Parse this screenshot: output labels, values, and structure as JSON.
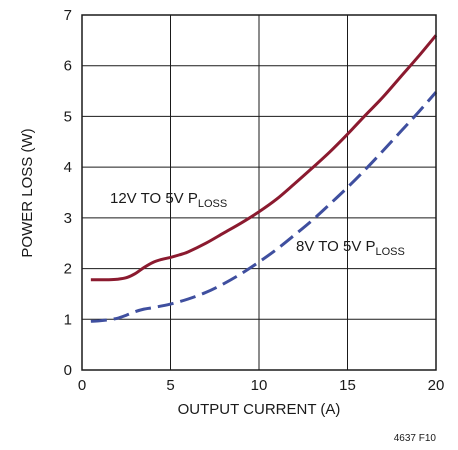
{
  "chart_data": {
    "type": "line",
    "xlabel": "OUTPUT CURRENT (A)",
    "ylabel": "POWER LOSS (W)",
    "xlim": [
      0,
      20
    ],
    "ylim": [
      0,
      7
    ],
    "x_ticks": [
      "0",
      "5",
      "10",
      "15",
      "20"
    ],
    "y_ticks": [
      "0",
      "1",
      "2",
      "3",
      "4",
      "5",
      "6",
      "7"
    ],
    "grid": true,
    "series": [
      {
        "name": "12V TO 5V PLOSS",
        "label_main": "12V TO 5V P",
        "label_sub": "LOSS",
        "color": "#8b1a2f",
        "style": "solid",
        "x": [
          0.5,
          1,
          1.5,
          2,
          2.5,
          3,
          3.5,
          4,
          4.5,
          5,
          5.5,
          6,
          7,
          8,
          9,
          10,
          11,
          12,
          13,
          14,
          15,
          16,
          17,
          18,
          19,
          20
        ],
        "y": [
          1.78,
          1.78,
          1.78,
          1.79,
          1.82,
          1.9,
          2.02,
          2.12,
          2.18,
          2.22,
          2.27,
          2.33,
          2.5,
          2.7,
          2.9,
          3.12,
          3.37,
          3.67,
          3.98,
          4.3,
          4.65,
          5.02,
          5.38,
          5.78,
          6.18,
          6.6
        ]
      },
      {
        "name": "8V TO 5V PLOSS",
        "label_main": "8V TO 5V P",
        "label_sub": "LOSS",
        "color": "#3f4f9f",
        "style": "dashed",
        "x": [
          0.5,
          1,
          1.5,
          2,
          2.5,
          3,
          3.5,
          4,
          5,
          6,
          7,
          8,
          9,
          10,
          11,
          12,
          13,
          14,
          15,
          16,
          17,
          18,
          19,
          20
        ],
        "y": [
          0.96,
          0.97,
          0.99,
          1.02,
          1.08,
          1.15,
          1.2,
          1.23,
          1.3,
          1.4,
          1.53,
          1.7,
          1.9,
          2.13,
          2.38,
          2.66,
          2.95,
          3.27,
          3.6,
          3.95,
          4.32,
          4.7,
          5.08,
          5.48
        ]
      }
    ],
    "figure_id": "4637 F10"
  }
}
